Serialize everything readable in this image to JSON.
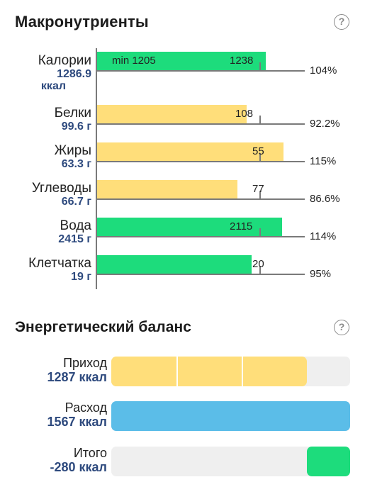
{
  "colors": {
    "green": "#1ddc7c",
    "yellow": "#ffde7a",
    "blue": "#5bbde8",
    "track": "#efefef",
    "amount_text": "#2e4a7e"
  },
  "macros": {
    "title": "Макронутриенты",
    "help_icon": "question-circle-icon",
    "help_glyph": "?",
    "min_label": "min 1205",
    "items": [
      {
        "name": "Калории",
        "amount_line1": "1286.9",
        "amount_line2": "ккал",
        "target": "1238",
        "percent": "104%",
        "status": "green",
        "fraction": 1.04
      },
      {
        "name": "Белки",
        "amount_line1": "99.6 г",
        "amount_line2": "",
        "target": "108",
        "percent": "92.2%",
        "status": "yellow",
        "fraction": 0.922
      },
      {
        "name": "Жиры",
        "amount_line1": "63.3 г",
        "amount_line2": "",
        "target": "55",
        "percent": "115%",
        "status": "yellow",
        "fraction": 1.15
      },
      {
        "name": "Углеводы",
        "amount_line1": "66.7 г",
        "amount_line2": "",
        "target": "77",
        "percent": "86.6%",
        "status": "yellow",
        "fraction": 0.866
      },
      {
        "name": "Вода",
        "amount_line1": "2415 г",
        "amount_line2": "",
        "target": "2115",
        "percent": "114%",
        "status": "green",
        "fraction": 1.14
      },
      {
        "name": "Клетчатка",
        "amount_line1": "19 г",
        "amount_line2": "",
        "target": "20",
        "percent": "95%",
        "status": "green",
        "fraction": 0.95
      }
    ]
  },
  "energy": {
    "title": "Энергетический баланс",
    "help_icon": "question-circle-icon",
    "help_glyph": "?",
    "rows": [
      {
        "name": "Приход",
        "value": "1287 ккал",
        "color": "yellow",
        "fill_fraction": 0.82,
        "segments": 3
      },
      {
        "name": "Расход",
        "value": "1567 ккал",
        "color": "blue",
        "fill_fraction": 1.0,
        "segments": 1
      },
      {
        "name": "Итого",
        "value": "-280 ккал",
        "color": "green",
        "fill_fraction": 0.18,
        "align": "right",
        "segments": 1
      }
    ]
  }
}
